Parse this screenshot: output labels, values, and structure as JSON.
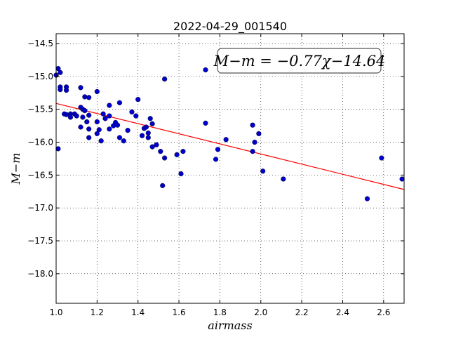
{
  "chart_data": {
    "type": "scatter",
    "title": "2022-04-29_001540",
    "xlabel": "airmass",
    "ylabel": "M−m",
    "xlim": [
      1.0,
      2.7
    ],
    "ylim": [
      -18.45,
      -14.35
    ],
    "y_inverted": true,
    "grid": true,
    "x_ticks": [
      1.0,
      1.2,
      1.4,
      1.6,
      1.8,
      2.0,
      2.2,
      2.4,
      2.6
    ],
    "x_tick_labels": [
      "1.0",
      "1.2",
      "1.4",
      "1.6",
      "1.8",
      "2.0",
      "2.2",
      "2.4",
      "2.6"
    ],
    "y_ticks": [
      -14.5,
      -15.0,
      -15.5,
      -16.0,
      -16.5,
      -17.0,
      -17.5,
      -18.0
    ],
    "y_tick_labels": [
      "−14.5",
      "−15.0",
      "−15.5",
      "−16.0",
      "−16.5",
      "−17.0",
      "−17.5",
      "−18.0"
    ],
    "annotation": "M−m = −0.77χ−14.64",
    "fit": {
      "slope": -0.77,
      "intercept": -14.64,
      "color": "#ff0000"
    },
    "point_color": "#0000cc",
    "points": [
      [
        1.0,
        -14.98
      ],
      [
        1.01,
        -14.88
      ],
      [
        1.02,
        -14.94
      ],
      [
        1.02,
        -15.16
      ],
      [
        1.02,
        -15.2
      ],
      [
        1.05,
        -15.16
      ],
      [
        1.05,
        -15.21
      ],
      [
        1.01,
        -16.1
      ],
      [
        1.04,
        -15.57
      ],
      [
        1.05,
        -15.58
      ],
      [
        1.07,
        -15.57
      ],
      [
        1.07,
        -15.62
      ],
      [
        1.09,
        -15.57
      ],
      [
        1.1,
        -15.6
      ],
      [
        1.12,
        -15.17
      ],
      [
        1.12,
        -15.47
      ],
      [
        1.13,
        -15.5
      ],
      [
        1.13,
        -15.62
      ],
      [
        1.14,
        -15.52
      ],
      [
        1.14,
        -15.31
      ],
      [
        1.16,
        -15.32
      ],
      [
        1.16,
        -15.59
      ],
      [
        1.15,
        -15.69
      ],
      [
        1.12,
        -15.77
      ],
      [
        1.16,
        -15.8
      ],
      [
        1.16,
        -15.93
      ],
      [
        1.2,
        -15.23
      ],
      [
        1.2,
        -15.69
      ],
      [
        1.21,
        -15.81
      ],
      [
        1.2,
        -15.87
      ],
      [
        1.22,
        -15.98
      ],
      [
        1.23,
        -15.57
      ],
      [
        1.24,
        -15.64
      ],
      [
        1.26,
        -15.44
      ],
      [
        1.26,
        -15.6
      ],
      [
        1.26,
        -15.8
      ],
      [
        1.28,
        -15.75
      ],
      [
        1.29,
        -15.7
      ],
      [
        1.3,
        -15.74
      ],
      [
        1.31,
        -15.4
      ],
      [
        1.31,
        -15.93
      ],
      [
        1.33,
        -15.98
      ],
      [
        1.35,
        -15.82
      ],
      [
        1.37,
        -15.54
      ],
      [
        1.39,
        -15.6
      ],
      [
        1.4,
        -15.35
      ],
      [
        1.42,
        -15.9
      ],
      [
        1.43,
        -15.79
      ],
      [
        1.44,
        -15.77
      ],
      [
        1.45,
        -15.86
      ],
      [
        1.45,
        -15.93
      ],
      [
        1.46,
        -15.64
      ],
      [
        1.47,
        -15.72
      ],
      [
        1.47,
        -16.07
      ],
      [
        1.49,
        -16.04
      ],
      [
        1.51,
        -16.14
      ],
      [
        1.52,
        -16.66
      ],
      [
        1.53,
        -15.04
      ],
      [
        1.53,
        -16.24
      ],
      [
        1.59,
        -16.19
      ],
      [
        1.61,
        -16.48
      ],
      [
        1.62,
        -16.14
      ],
      [
        1.73,
        -14.9
      ],
      [
        1.73,
        -15.71
      ],
      [
        1.78,
        -16.26
      ],
      [
        1.79,
        -16.11
      ],
      [
        1.83,
        -15.96
      ],
      [
        1.96,
        -15.74
      ],
      [
        1.96,
        -16.14
      ],
      [
        1.97,
        -16.0
      ],
      [
        1.99,
        -15.87
      ],
      [
        2.01,
        -16.44
      ],
      [
        2.11,
        -16.56
      ],
      [
        2.52,
        -16.86
      ],
      [
        2.59,
        -16.24
      ],
      [
        2.69,
        -16.56
      ]
    ]
  }
}
